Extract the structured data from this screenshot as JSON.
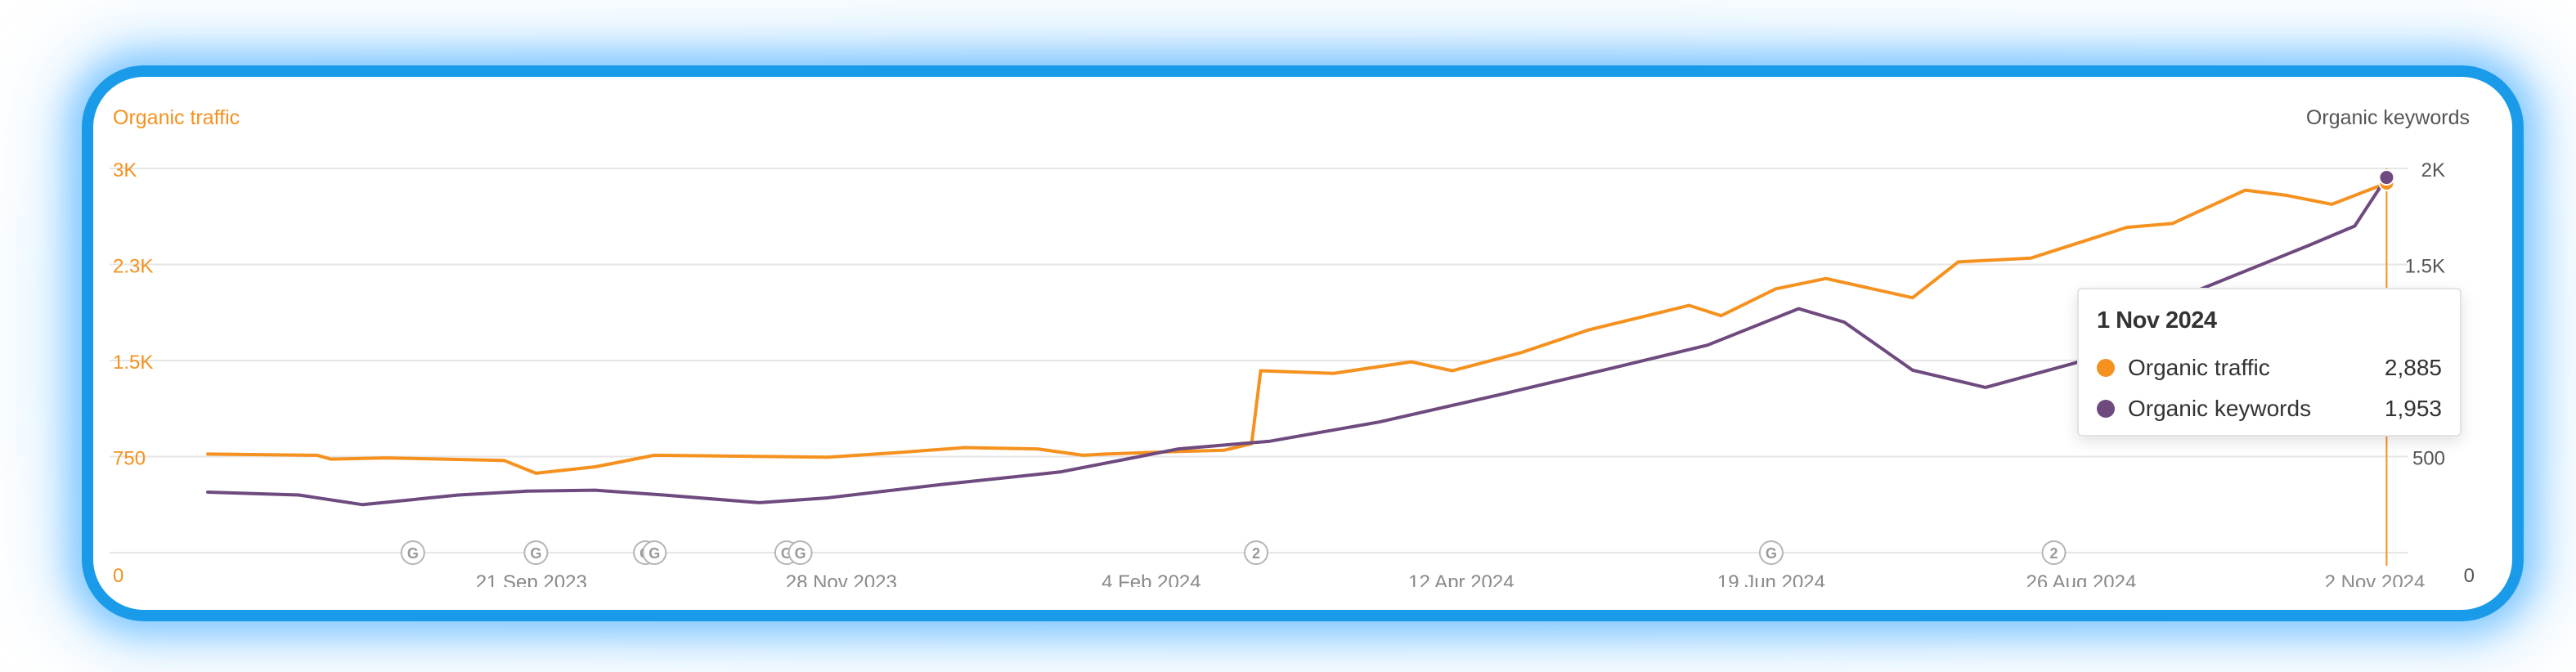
{
  "chart_data": {
    "type": "line",
    "left_axis_label": "Organic traffic",
    "right_axis_label": "Organic keywords",
    "left_ticks": [
      "0",
      "750",
      "1.5K",
      "2.3K",
      "3K"
    ],
    "left_tick_values": [
      0,
      750,
      1500,
      2250,
      3000
    ],
    "right_ticks": [
      "0",
      "500",
      "1K",
      "1.5K",
      "2K"
    ],
    "right_tick_values": [
      0,
      500,
      1000,
      1500,
      2000
    ],
    "x_ticks": [
      "21 Sep 2023",
      "28 Nov 2023",
      "4 Feb 2024",
      "12 Apr 2024",
      "19 Jun 2024",
      "26 Aug 2024",
      "2 Nov 2024"
    ],
    "x_tick_dates": [
      "2023-09-21",
      "2023-11-28",
      "2024-02-04",
      "2024-04-12",
      "2024-06-19",
      "2024-08-26",
      "2024-11-02"
    ],
    "x_range": [
      "2023-07-12",
      "2024-11-02"
    ],
    "left_ylim": [
      0,
      3000
    ],
    "right_ylim": [
      0,
      2000
    ],
    "grid": true,
    "series": [
      {
        "name": "Organic traffic",
        "axis": "left",
        "color": "#f5911e",
        "points": [
          [
            "2023-07-12",
            770
          ],
          [
            "2023-08-05",
            760
          ],
          [
            "2023-08-08",
            730
          ],
          [
            "2023-08-20",
            740
          ],
          [
            "2023-09-15",
            720
          ],
          [
            "2023-09-22",
            620
          ],
          [
            "2023-10-05",
            670
          ],
          [
            "2023-10-18",
            760
          ],
          [
            "2023-11-25",
            745
          ],
          [
            "2023-12-10",
            780
          ],
          [
            "2023-12-25",
            820
          ],
          [
            "2024-01-10",
            810
          ],
          [
            "2024-01-20",
            760
          ],
          [
            "2024-01-25",
            770
          ],
          [
            "2024-02-10",
            790
          ],
          [
            "2024-02-20",
            800
          ],
          [
            "2024-02-26",
            850
          ],
          [
            "2024-02-28",
            1420
          ],
          [
            "2024-03-15",
            1400
          ],
          [
            "2024-04-01",
            1490
          ],
          [
            "2024-04-10",
            1420
          ],
          [
            "2024-04-25",
            1560
          ],
          [
            "2024-05-10",
            1740
          ],
          [
            "2024-06-01",
            1930
          ],
          [
            "2024-06-08",
            1850
          ],
          [
            "2024-06-20",
            2060
          ],
          [
            "2024-07-01",
            2140
          ],
          [
            "2024-07-20",
            1990
          ],
          [
            "2024-07-30",
            2270
          ],
          [
            "2024-08-15",
            2300
          ],
          [
            "2024-09-05",
            2540
          ],
          [
            "2024-09-15",
            2570
          ],
          [
            "2024-10-01",
            2830
          ],
          [
            "2024-10-10",
            2790
          ],
          [
            "2024-10-20",
            2720
          ],
          [
            "2024-11-01",
            2885
          ]
        ]
      },
      {
        "name": "Organic keywords",
        "axis": "right",
        "color": "#6e4a7e",
        "points": [
          [
            "2023-07-12",
            315
          ],
          [
            "2023-08-01",
            300
          ],
          [
            "2023-08-15",
            250
          ],
          [
            "2023-09-05",
            300
          ],
          [
            "2023-09-20",
            320
          ],
          [
            "2023-10-05",
            325
          ],
          [
            "2023-10-20",
            300
          ],
          [
            "2023-11-10",
            260
          ],
          [
            "2023-11-25",
            285
          ],
          [
            "2023-12-20",
            355
          ],
          [
            "2024-01-15",
            420
          ],
          [
            "2024-02-10",
            540
          ],
          [
            "2024-03-01",
            580
          ],
          [
            "2024-03-25",
            680
          ],
          [
            "2024-04-20",
            820
          ],
          [
            "2024-05-15",
            960
          ],
          [
            "2024-06-05",
            1080
          ],
          [
            "2024-06-25",
            1270
          ],
          [
            "2024-07-05",
            1200
          ],
          [
            "2024-07-20",
            950
          ],
          [
            "2024-08-05",
            860
          ],
          [
            "2024-08-25",
            990
          ],
          [
            "2024-09-20",
            1360
          ],
          [
            "2024-10-15",
            1600
          ],
          [
            "2024-10-25",
            1700
          ],
          [
            "2024-11-01",
            1953
          ]
        ]
      }
    ],
    "annotations": [
      {
        "date": "2023-08-26",
        "label": "G"
      },
      {
        "date": "2023-09-22",
        "label": "G"
      },
      {
        "date": "2023-10-16",
        "label": "G"
      },
      {
        "date": "2023-10-18",
        "label": "G"
      },
      {
        "date": "2023-11-16",
        "label": "G"
      },
      {
        "date": "2023-11-19",
        "label": "G"
      },
      {
        "date": "2024-02-27",
        "label": "2"
      },
      {
        "date": "2024-06-19",
        "label": "G"
      },
      {
        "date": "2024-08-20",
        "label": "2"
      }
    ],
    "tooltip": {
      "date": "1 Nov 2024",
      "rows": [
        {
          "label": "Organic traffic",
          "value": "2,885",
          "color": "#f5911e"
        },
        {
          "label": "Organic keywords",
          "value": "1,953",
          "color": "#6e4a7e"
        }
      ]
    }
  },
  "colors": {
    "traffic": "#f5911e",
    "keywords": "#6e4a7e",
    "grid": "#e6e6e6",
    "x_tick": "#8a8a8a",
    "right_tick": "#555555",
    "frame": "#1a9be9"
  }
}
